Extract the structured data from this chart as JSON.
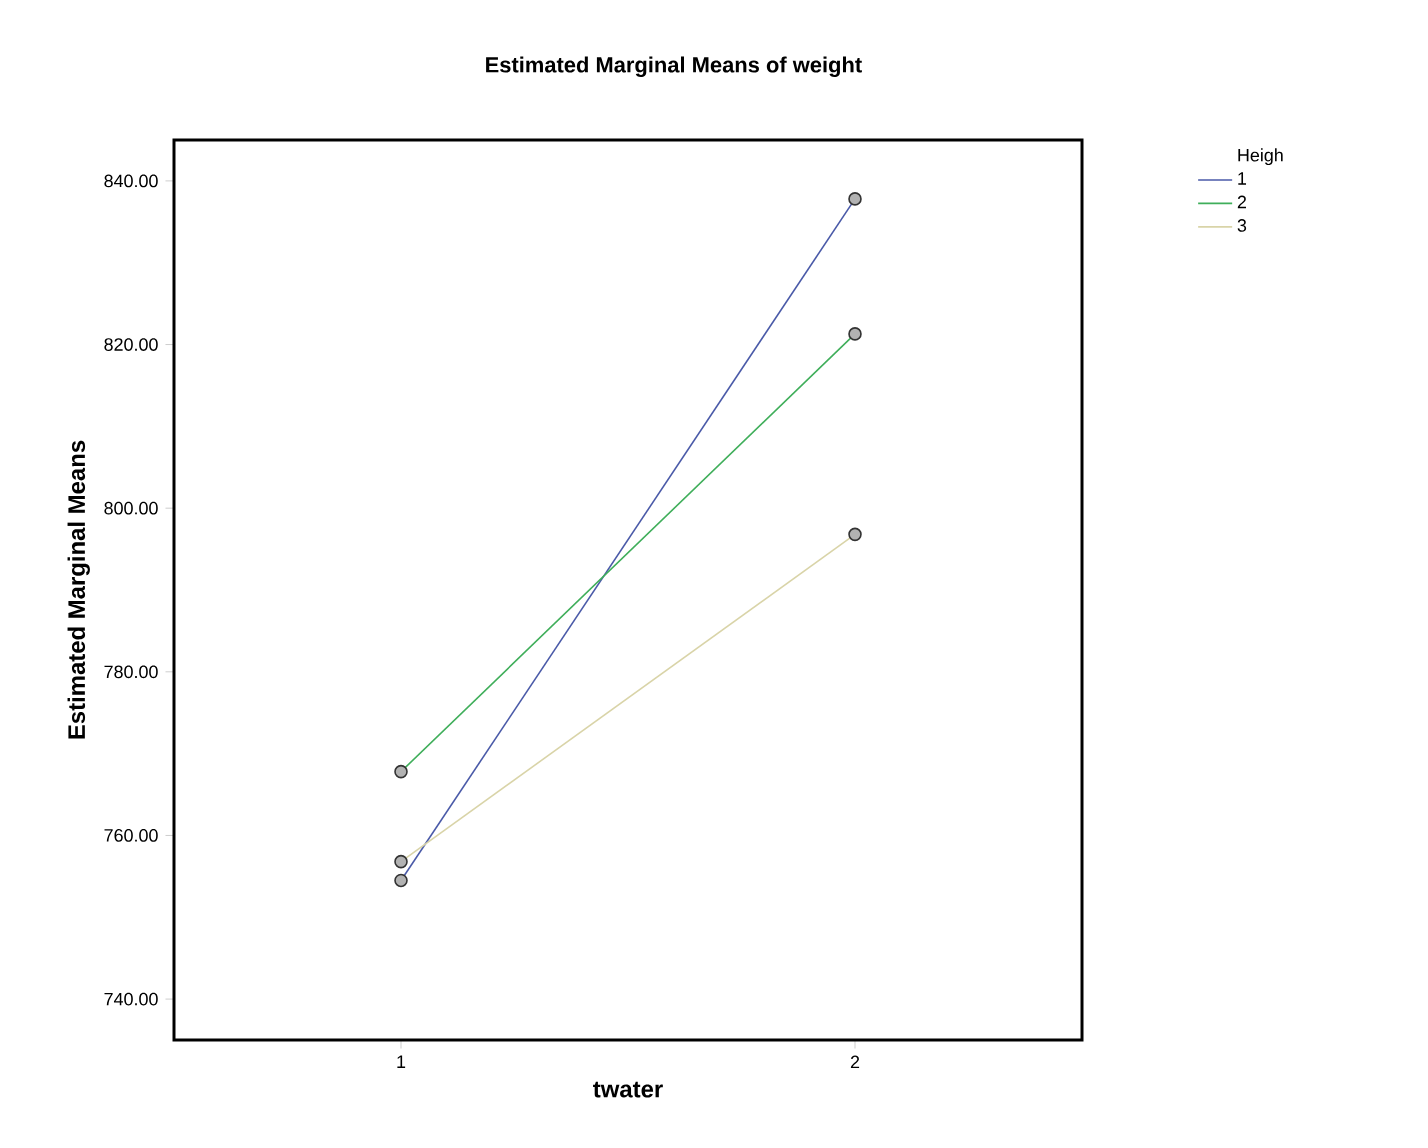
{
  "chart_data": {
    "type": "line",
    "title": "Estimated Marginal Means of weight",
    "xlabel": "twater",
    "ylabel": "Estimated Marginal Means",
    "legend_title": "Heigh",
    "categories": [
      "1",
      "2"
    ],
    "series": [
      {
        "name": "1",
        "color": "#4a5aa8",
        "values": [
          754.5,
          837.8
        ]
      },
      {
        "name": "2",
        "color": "#3fae5a",
        "values": [
          767.8,
          821.3
        ]
      },
      {
        "name": "3",
        "color": "#d9d4a8",
        "values": [
          756.8,
          796.8
        ]
      }
    ],
    "ylim": [
      735,
      845
    ],
    "yticks": [
      {
        "value": 740,
        "label": "740.00"
      },
      {
        "value": 760,
        "label": "760.00"
      },
      {
        "value": 780,
        "label": "780.00"
      },
      {
        "value": 800,
        "label": "800.00"
      },
      {
        "value": 820,
        "label": "820.00"
      },
      {
        "value": 840,
        "label": "840.00"
      }
    ],
    "marker": "circle",
    "legend": "top right",
    "grid": false
  }
}
